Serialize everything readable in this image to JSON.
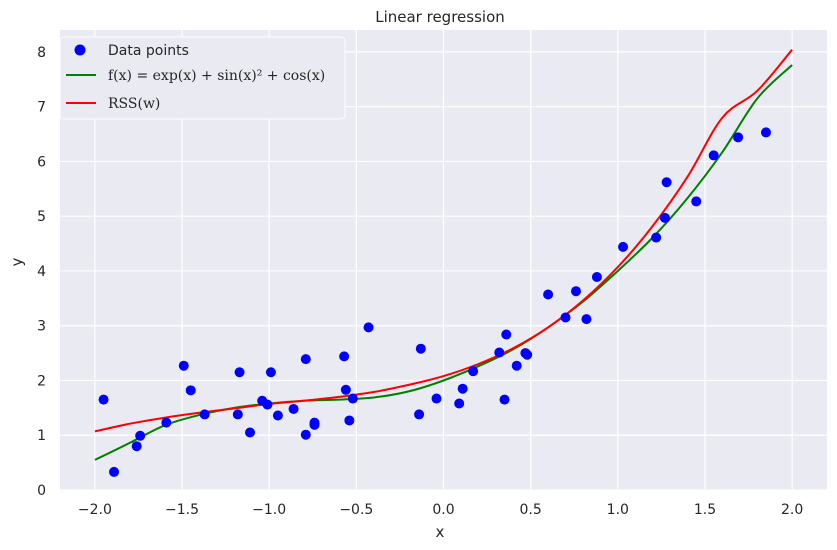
{
  "chart_data": {
    "type": "scatter",
    "title": "Linear regression",
    "xlabel": "x",
    "ylabel": "y",
    "xlim": [
      -2.2,
      2.2
    ],
    "ylim": [
      0,
      8.4
    ],
    "x_ticks": [
      -2.0,
      -1.5,
      -1.0,
      -0.5,
      0.0,
      0.5,
      1.0,
      1.5,
      2.0
    ],
    "x_tick_labels": [
      "−2.0",
      "−1.5",
      "−1.0",
      "−0.5",
      "0.0",
      "0.5",
      "1.0",
      "1.5",
      "2.0"
    ],
    "y_ticks": [
      0,
      1,
      2,
      3,
      4,
      5,
      6,
      7,
      8
    ],
    "y_tick_labels": [
      "0",
      "1",
      "2",
      "3",
      "4",
      "5",
      "6",
      "7",
      "8"
    ],
    "grid": true,
    "legend_position": "top-left",
    "legend": {
      "points_label": "Data points",
      "fx_label": "f(x) = exp(x) + sin(x)² + cos(x)",
      "rss_label": "RSS(w)"
    },
    "colors": {
      "points": "#0000ff",
      "fx": "#008000",
      "rss": "#ff0000",
      "background": "#eaeaf2",
      "grid": "#ffffff"
    },
    "series": [
      {
        "name": "Data points",
        "kind": "scatter",
        "x": [
          -1.95,
          -1.89,
          -1.76,
          -1.74,
          -1.59,
          -1.49,
          -1.45,
          -1.37,
          -1.18,
          -1.17,
          -1.11,
          -1.04,
          -1.01,
          -0.99,
          -0.95,
          -0.86,
          -0.79,
          -0.79,
          -0.74,
          -0.74,
          -0.57,
          -0.56,
          -0.54,
          -0.52,
          -0.43,
          -0.14,
          -0.13,
          -0.04,
          0.09,
          0.11,
          0.17,
          0.32,
          0.35,
          0.36,
          0.42,
          0.47,
          0.48,
          0.6,
          0.7,
          0.76,
          0.82,
          0.88,
          1.03,
          1.22,
          1.27,
          1.28,
          1.45,
          1.55,
          1.69,
          1.85
        ],
        "y": [
          1.65,
          0.33,
          0.8,
          0.99,
          1.23,
          2.27,
          1.82,
          1.38,
          1.38,
          2.15,
          1.05,
          1.63,
          1.56,
          2.15,
          1.36,
          1.48,
          2.39,
          1.01,
          1.23,
          1.19,
          2.44,
          1.83,
          1.27,
          1.67,
          2.97,
          1.38,
          2.58,
          1.67,
          1.58,
          1.85,
          2.17,
          2.51,
          1.65,
          2.84,
          2.27,
          2.5,
          2.47,
          3.57,
          3.15,
          3.63,
          3.12,
          3.89,
          4.44,
          4.61,
          4.97,
          5.62,
          5.27,
          6.11,
          6.44,
          6.53
        ]
      },
      {
        "name": "f(x) = exp(x) + sin(x)² + cos(x)",
        "kind": "line",
        "x": [
          -2.0,
          -1.8,
          -1.6,
          -1.4,
          -1.2,
          -1.0,
          -0.8,
          -0.6,
          -0.4,
          -0.2,
          0.0,
          0.2,
          0.4,
          0.6,
          0.8,
          1.0,
          1.2,
          1.4,
          1.6,
          1.8,
          2.0
        ],
        "y": [
          0.55,
          0.86,
          1.18,
          1.37,
          1.5,
          1.58,
          1.63,
          1.65,
          1.69,
          1.8,
          2.0,
          2.26,
          2.57,
          2.97,
          3.44,
          4.0,
          4.61,
          5.33,
          6.17,
          7.15,
          7.76
        ]
      },
      {
        "name": "RSS(w)",
        "kind": "line",
        "x": [
          -2.0,
          -1.8,
          -1.6,
          -1.4,
          -1.2,
          -1.0,
          -0.8,
          -0.6,
          -0.4,
          -0.2,
          0.0,
          0.2,
          0.4,
          0.6,
          0.8,
          1.0,
          1.2,
          1.4,
          1.6,
          1.8,
          2.0
        ],
        "y": [
          1.07,
          1.21,
          1.32,
          1.41,
          1.49,
          1.57,
          1.63,
          1.7,
          1.79,
          1.92,
          2.08,
          2.3,
          2.59,
          2.97,
          3.46,
          4.07,
          4.82,
          5.72,
          6.8,
          7.29,
          8.04
        ]
      }
    ]
  }
}
